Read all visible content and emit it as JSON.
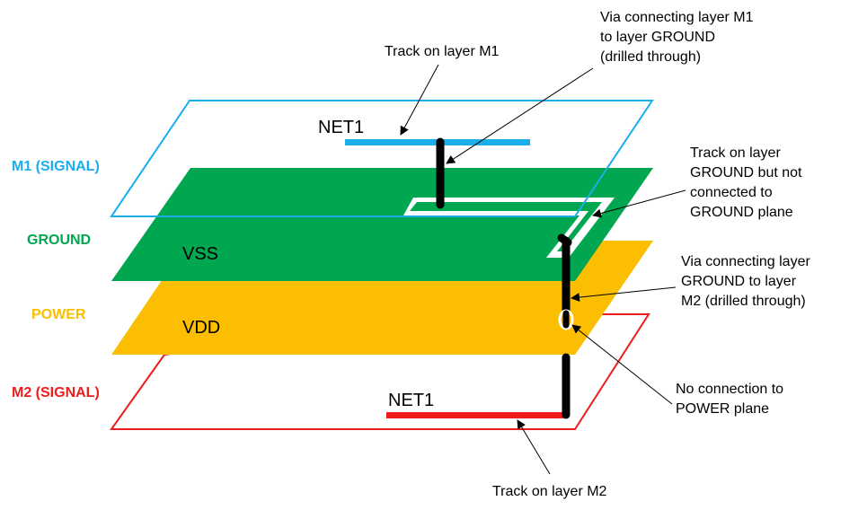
{
  "layers": {
    "m1": {
      "label": "M1 (SIGNAL)",
      "color": "#1aaeea"
    },
    "ground": {
      "label": "GROUND",
      "color": "#00a650",
      "plane_label": "VSS"
    },
    "power": {
      "label": "POWER",
      "color": "#fcbe00",
      "plane_label": "VDD"
    },
    "m2": {
      "label": "M2 (SIGNAL)",
      "color": "#ee1c1c"
    }
  },
  "nets": {
    "m1_track": "NET1",
    "m2_track": "NET1"
  },
  "annotations": {
    "track_m1": [
      "Track on layer M1"
    ],
    "via_m1_ground": [
      "Via connecting layer M1",
      "to layer GROUND",
      "(drilled through)"
    ],
    "track_ground": [
      "Track on layer",
      "GROUND but not",
      "connected to",
      "GROUND plane"
    ],
    "via_ground_m2": [
      "Via connecting layer",
      "GROUND to layer",
      "M2 (drilled through)"
    ],
    "no_connection": [
      "No connection to",
      "POWER plane"
    ],
    "track_m2": [
      "Track on layer M2"
    ]
  }
}
